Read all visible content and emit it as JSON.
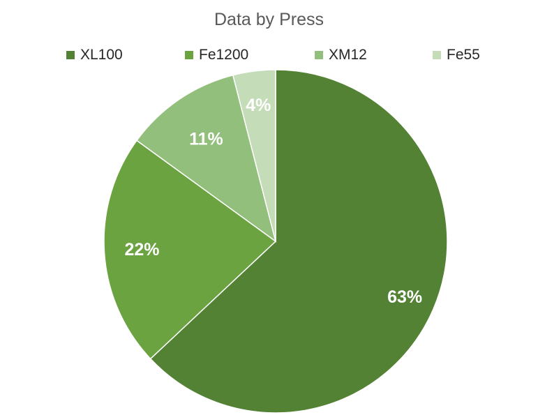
{
  "chart_data": {
    "type": "pie",
    "title": "Data by Press",
    "legend_position": "top",
    "categories": [
      "XL100",
      "Fe1200",
      "XM12",
      "Fe55"
    ],
    "values": [
      63,
      22,
      11,
      4
    ],
    "data_labels": [
      "63%",
      "22%",
      "11%",
      "4%"
    ],
    "colors": [
      "#548235",
      "#6aa340",
      "#93bf7c",
      "#c5dcb8"
    ]
  }
}
